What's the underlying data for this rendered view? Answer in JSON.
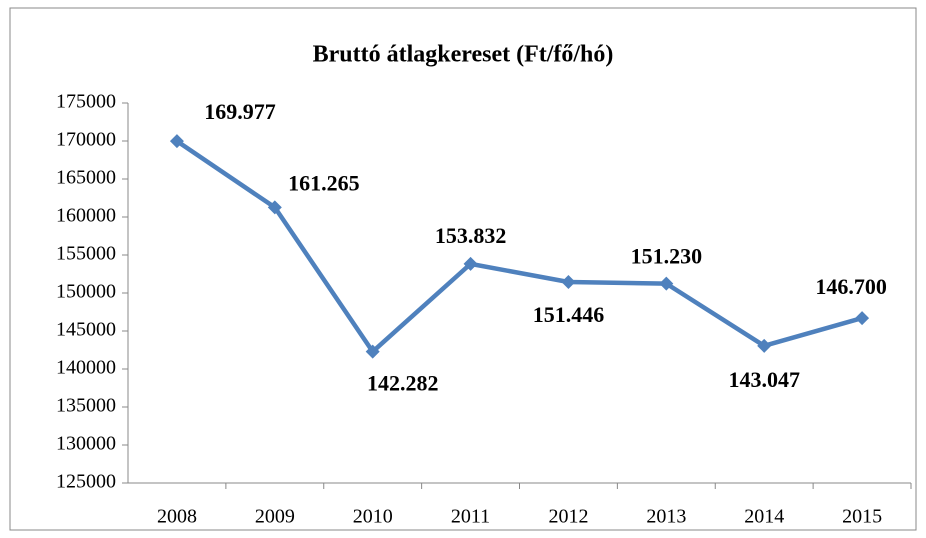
{
  "chart_data": {
    "type": "line",
    "title": "Bruttó átlagkereset (Ft/fő/hó)",
    "categories": [
      "2008",
      "2009",
      "2010",
      "2011",
      "2012",
      "2013",
      "2014",
      "2015"
    ],
    "series": [
      {
        "name": "Bruttó átlagkereset",
        "color": "#4f81bd",
        "values": [
          169977,
          161265,
          142282,
          153832,
          151446,
          151230,
          143047,
          146700
        ],
        "value_labels": [
          "169.977",
          "161.265",
          "142.282",
          "153.832",
          "151.446",
          "151.230",
          "143.047",
          "146.700"
        ]
      }
    ],
    "ylim": [
      125000,
      175000
    ],
    "yticks": [
      125000,
      130000,
      135000,
      140000,
      145000,
      150000,
      155000,
      160000,
      165000,
      170000,
      175000
    ],
    "grid": false,
    "legend": false
  }
}
